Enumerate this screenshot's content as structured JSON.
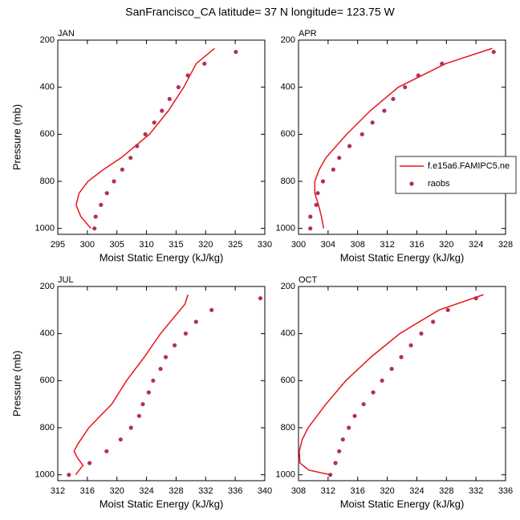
{
  "title": "SanFrancisco_CA  latitude= 37 N longitude= 123.75 W",
  "chart_data": [
    {
      "type": "line",
      "title": "JAN",
      "xlabel": "Moist Static Energy (kJ/kg)",
      "ylabel": "Pressure (mb)",
      "xlim": [
        295,
        330
      ],
      "xticks": [
        295,
        300,
        305,
        310,
        315,
        320,
        325,
        330
      ],
      "ylim": [
        200,
        1025
      ],
      "yticks": [
        200,
        400,
        600,
        800,
        1000
      ],
      "y_inverted": true,
      "series": [
        {
          "color": "#e8161b",
          "style": "line",
          "x": [
            321.5,
            318.4,
            316.3,
            313.7,
            310.5,
            305.7,
            302.7,
            300.1,
            298.6,
            298.1,
            298.9,
            300.6
          ],
          "y": [
            235,
            300,
            400,
            500,
            600,
            700,
            750,
            800,
            850,
            900,
            950,
            1000
          ]
        },
        {
          "color": "#b0305c",
          "style": "markers",
          "x": [
            301.2,
            301.4,
            302.3,
            303.3,
            304.5,
            305.9,
            307.3,
            308.4,
            309.8,
            311.3,
            312.6,
            313.9,
            315.4,
            317.0,
            319.8,
            325.1
          ],
          "y": [
            1000,
            950,
            900,
            850,
            800,
            750,
            700,
            650,
            600,
            550,
            500,
            450,
            400,
            350,
            300,
            250
          ]
        }
      ]
    },
    {
      "type": "line",
      "title": "APR",
      "xlabel": "Moist Static Energy (kJ/kg)",
      "xlim": [
        300,
        328
      ],
      "xticks": [
        300,
        304,
        308,
        312,
        316,
        320,
        324,
        328
      ],
      "ylim": [
        200,
        1025
      ],
      "yticks": [
        200,
        400,
        600,
        800,
        1000
      ],
      "y_inverted": true,
      "legend": "right",
      "series": [
        {
          "name": "f.e15a6.FAMIPC5.ne",
          "color": "#e8161b",
          "style": "line",
          "x": [
            326.2,
            319.9,
            313.5,
            309.7,
            306.5,
            303.7,
            302.8,
            302.2,
            302.2,
            302.7,
            303.1,
            303.4
          ],
          "y": [
            235,
            300,
            400,
            500,
            600,
            700,
            750,
            800,
            850,
            900,
            950,
            1000
          ]
        },
        {
          "name": "raobs",
          "color": "#b0305c",
          "style": "markers",
          "x": [
            301.6,
            301.6,
            302.4,
            302.6,
            303.3,
            304.7,
            305.5,
            306.9,
            308.6,
            310.0,
            311.6,
            312.8,
            314.4,
            316.2,
            319.4,
            326.4
          ],
          "y": [
            1000,
            950,
            900,
            850,
            800,
            750,
            700,
            650,
            600,
            550,
            500,
            450,
            400,
            350,
            300,
            250
          ]
        }
      ]
    },
    {
      "type": "line",
      "title": "JUL",
      "xlabel": "Moist Static Energy (kJ/kg)",
      "ylabel": "Pressure (mb)",
      "xlim": [
        312,
        340
      ],
      "xticks": [
        312,
        316,
        320,
        324,
        328,
        332,
        336,
        340
      ],
      "ylim": [
        200,
        1025
      ],
      "yticks": [
        200,
        400,
        600,
        800,
        1000
      ],
      "y_inverted": true,
      "series": [
        {
          "color": "#e8161b",
          "style": "line",
          "x": [
            329.6,
            329.2,
            325.9,
            323.7,
            321.3,
            320.9,
            319.3,
            316.2,
            314.7,
            314.2,
            314.7,
            315.4,
            314.4
          ],
          "y": [
            235,
            275,
            400,
            500,
            600,
            620,
            700,
            800,
            870,
            900,
            930,
            960,
            1000
          ]
        },
        {
          "color": "#b0305c",
          "style": "markers",
          "x": [
            313.5,
            316.3,
            318.6,
            320.5,
            321.9,
            323.0,
            323.5,
            324.3,
            324.9,
            325.9,
            326.6,
            327.8,
            329.3,
            330.7,
            332.8,
            339.4
          ],
          "y": [
            1000,
            950,
            900,
            850,
            800,
            750,
            700,
            650,
            600,
            550,
            500,
            450,
            400,
            350,
            300,
            250
          ]
        }
      ]
    },
    {
      "type": "line",
      "title": "OCT",
      "xlabel": "Moist Static Energy (kJ/kg)",
      "xlim": [
        308,
        336
      ],
      "xticks": [
        308,
        312,
        316,
        320,
        324,
        328,
        332,
        336
      ],
      "ylim": [
        200,
        1025
      ],
      "yticks": [
        200,
        400,
        600,
        800,
        1000
      ],
      "y_inverted": true,
      "series": [
        {
          "color": "#e8161b",
          "style": "line",
          "x": [
            333.0,
            327.0,
            321.7,
            317.8,
            314.4,
            311.7,
            309.3,
            308.5,
            308.1,
            308.2,
            309.4,
            312.3
          ],
          "y": [
            235,
            300,
            400,
            500,
            600,
            700,
            800,
            850,
            900,
            950,
            980,
            1000
          ]
        },
        {
          "color": "#b0305c",
          "style": "markers",
          "x": [
            312.3,
            313.0,
            313.5,
            314.0,
            314.8,
            315.6,
            316.8,
            318.1,
            319.3,
            320.6,
            321.9,
            323.2,
            324.6,
            326.2,
            328.2,
            332.0
          ],
          "y": [
            1000,
            950,
            900,
            850,
            800,
            750,
            700,
            650,
            600,
            550,
            500,
            450,
            400,
            350,
            300,
            250
          ]
        }
      ]
    }
  ]
}
